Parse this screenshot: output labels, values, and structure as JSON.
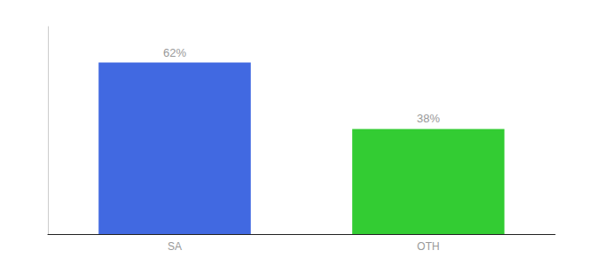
{
  "chart_data": {
    "type": "bar",
    "categories": [
      "SA",
      "OTH"
    ],
    "values": [
      62,
      38
    ],
    "value_labels": [
      "62%",
      "38%"
    ],
    "colors": [
      "#4169e1",
      "#33cc33"
    ],
    "ylim": [
      0,
      75
    ],
    "data_labels": true,
    "tick_labels": "x",
    "grid": false
  }
}
